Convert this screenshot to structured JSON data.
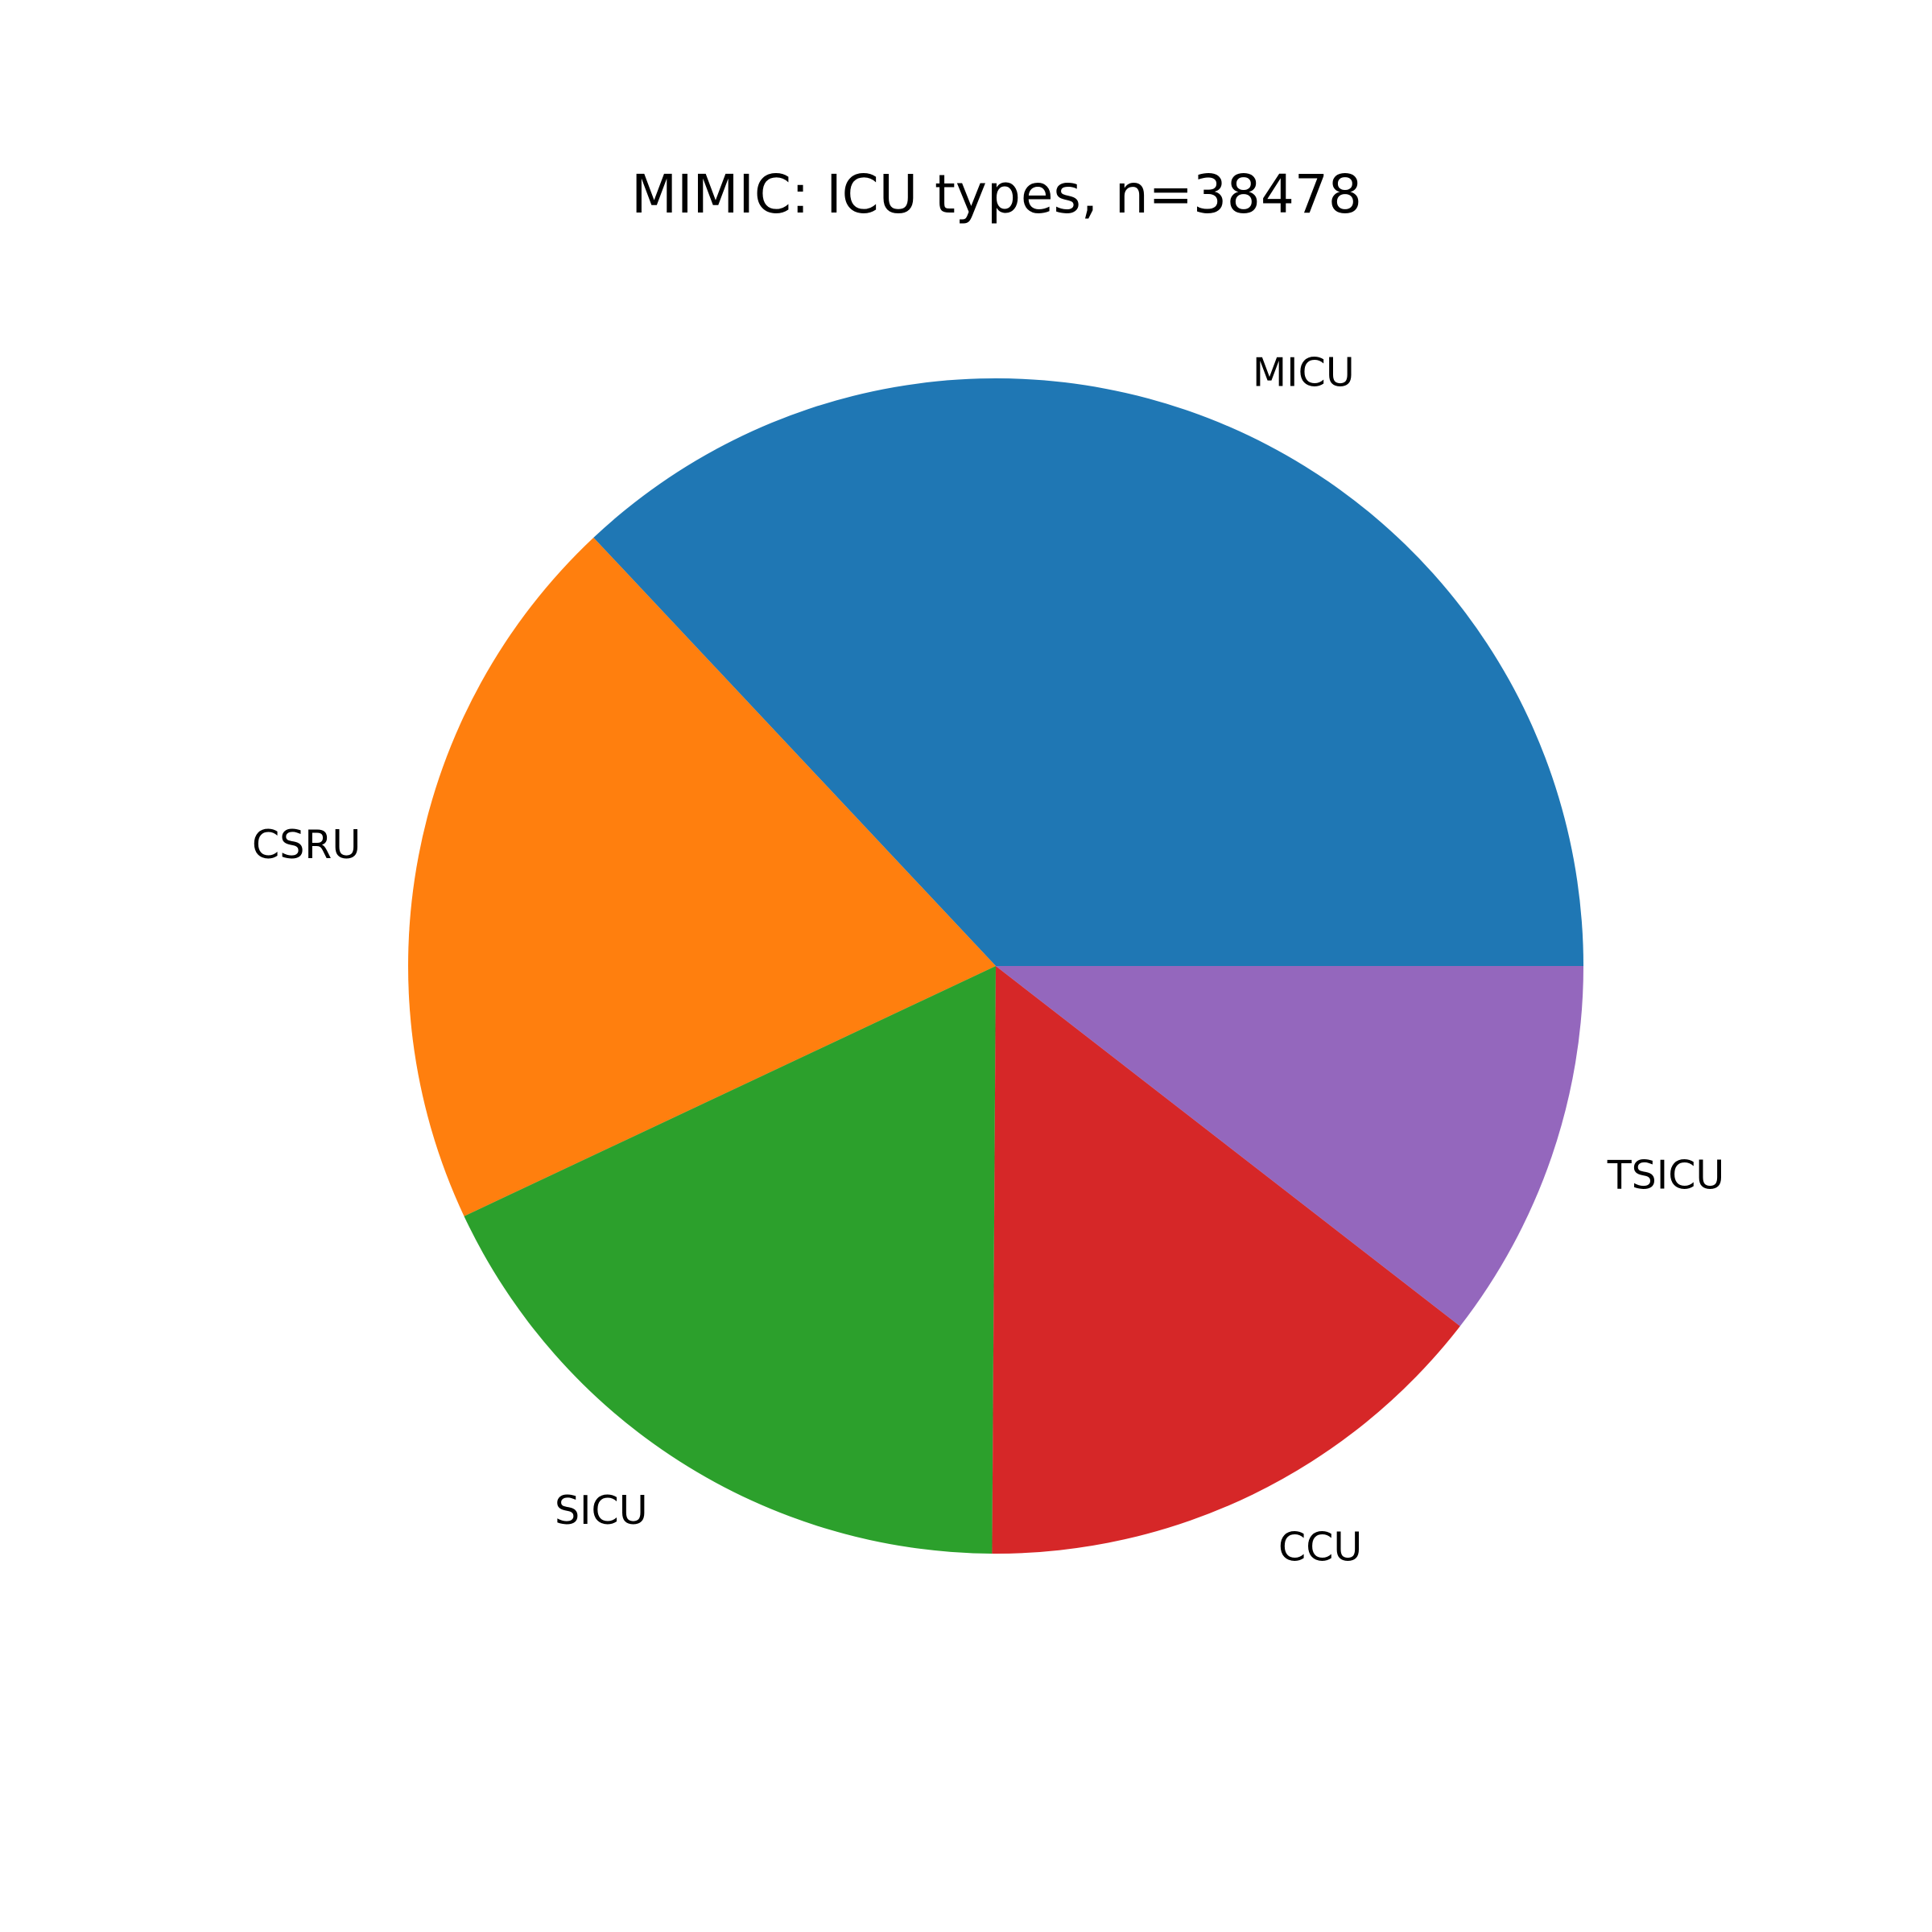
{
  "chart_data": {
    "type": "pie",
    "title": "MIMIC: ICU types, n=38478",
    "start_angle_deg": 0,
    "direction": "counterclockwise",
    "slices": [
      {
        "label": "MICU",
        "value": 37.0,
        "color": "#1f77b4"
      },
      {
        "label": "CSRU",
        "value": 20.0,
        "color": "#ff7f0e"
      },
      {
        "label": "SICU",
        "value": 17.9,
        "color": "#2ca02c"
      },
      {
        "label": "CCU",
        "value": 14.6,
        "color": "#d62728"
      },
      {
        "label": "TSICU",
        "value": 10.5,
        "color": "#9467bd"
      }
    ]
  }
}
